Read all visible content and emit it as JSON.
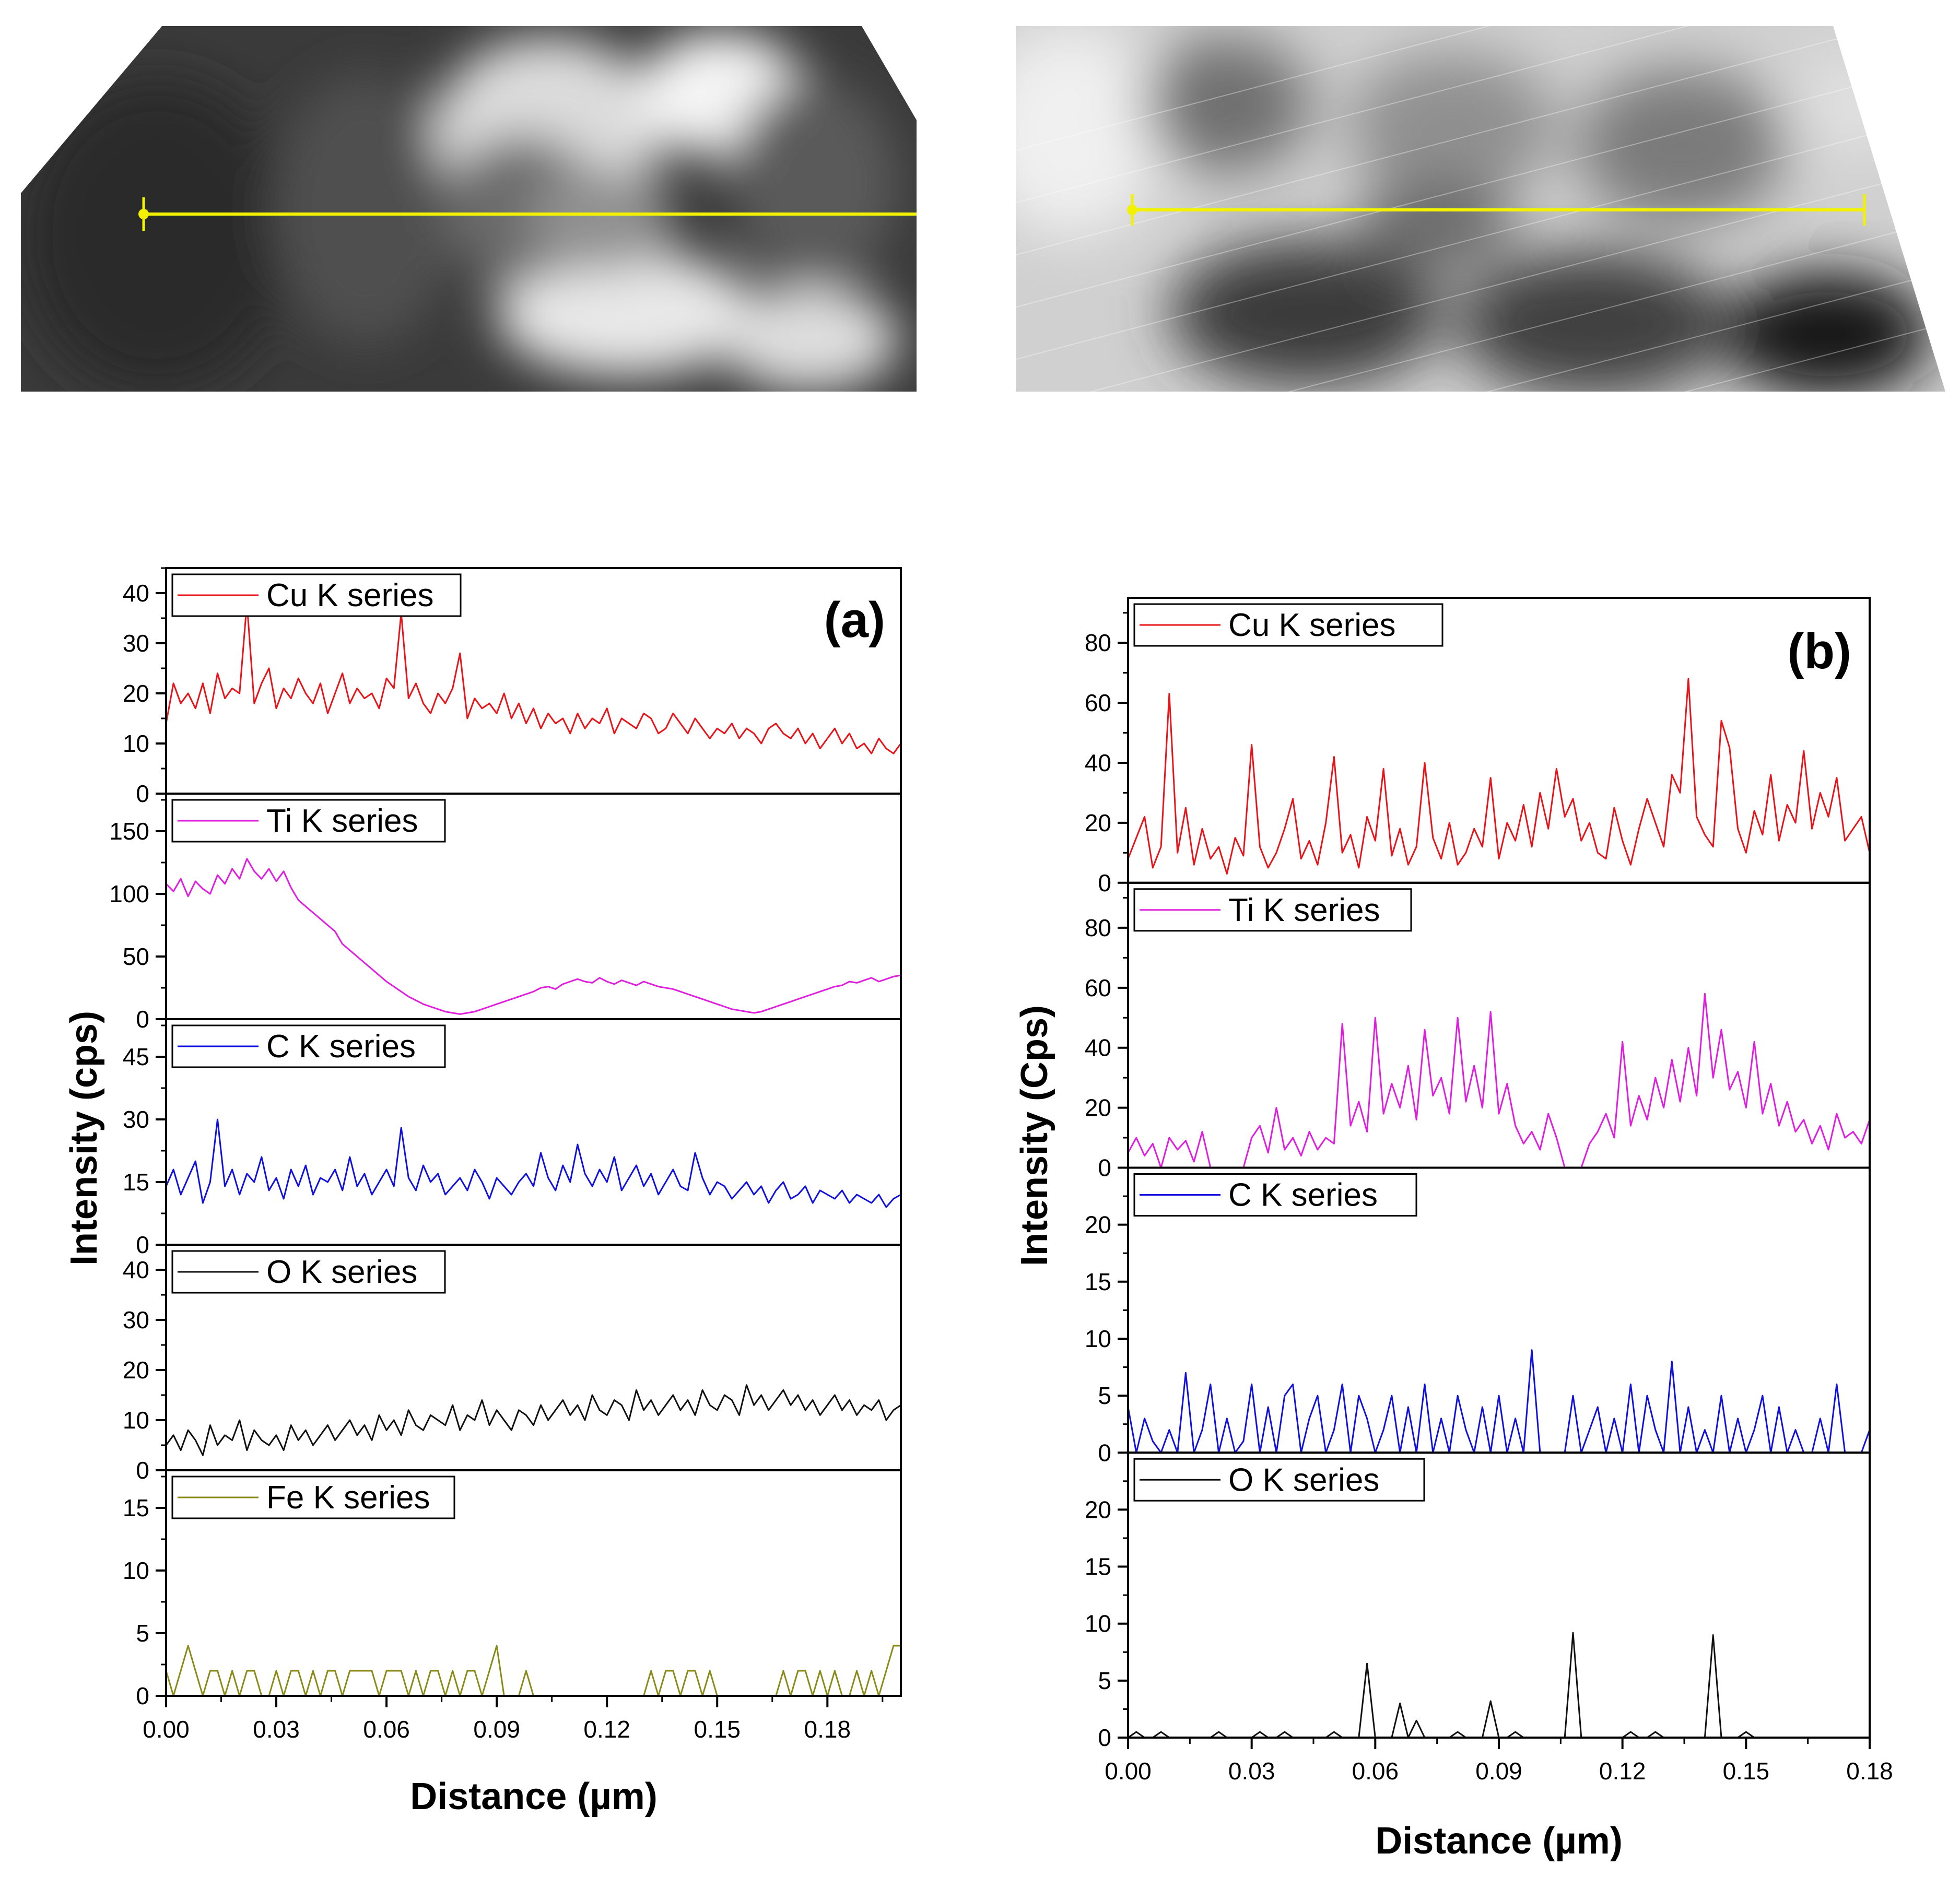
{
  "colors": {
    "Cu": "#e8141a",
    "Ti": "#e01ee0",
    "C": "#1010e0",
    "O": "#111111",
    "Fe": "#8a8a16",
    "marker_line": "#f2f200"
  },
  "chart_data": [
    {
      "type": "line",
      "panel_label": "(a)",
      "xlabel": "Distance (µm)",
      "ylabel": "Intensity (cps)",
      "xlim": [
        0,
        0.2
      ],
      "xticks": [
        "0.00",
        "0.03",
        "0.06",
        "0.09",
        "0.12",
        "0.15",
        "0.18"
      ],
      "tick_values": [
        0,
        0.03,
        0.06,
        0.09,
        0.12,
        0.15,
        0.18
      ],
      "stacked": true,
      "legend_position": "top-left of each sub-panel",
      "series": [
        {
          "name": "Cu K series",
          "color_key": "Cu",
          "ylim": [
            0,
            45
          ],
          "yticks": [
            0,
            10,
            20,
            30,
            40
          ],
          "x_step": 0.002,
          "values": [
            14,
            22,
            18,
            20,
            17,
            22,
            16,
            24,
            19,
            21,
            20,
            38,
            18,
            22,
            25,
            17,
            21,
            19,
            23,
            20,
            18,
            22,
            16,
            20,
            24,
            18,
            21,
            19,
            20,
            17,
            23,
            21,
            36,
            19,
            22,
            18,
            16,
            20,
            18,
            21,
            28,
            15,
            19,
            17,
            18,
            16,
            20,
            15,
            18,
            14,
            17,
            13,
            16,
            14,
            15,
            12,
            16,
            13,
            15,
            14,
            17,
            12,
            15,
            14,
            13,
            16,
            15,
            12,
            13,
            16,
            14,
            12,
            15,
            13,
            11,
            13,
            12,
            14,
            11,
            13,
            12,
            10,
            13,
            14,
            12,
            11,
            13,
            10,
            12,
            9,
            11,
            13,
            10,
            12,
            9,
            10,
            8,
            11,
            9,
            8,
            10
          ]
        },
        {
          "name": "Ti K series",
          "color_key": "Ti",
          "ylim": [
            0,
            180
          ],
          "yticks": [
            0,
            50,
            100,
            150
          ],
          "x_step": 0.002,
          "values": [
            108,
            102,
            112,
            98,
            110,
            104,
            100,
            115,
            108,
            120,
            112,
            128,
            118,
            112,
            120,
            110,
            118,
            105,
            95,
            90,
            85,
            80,
            75,
            70,
            60,
            55,
            50,
            45,
            40,
            35,
            30,
            26,
            22,
            18,
            15,
            12,
            10,
            8,
            6,
            5,
            4,
            5,
            6,
            8,
            10,
            12,
            14,
            16,
            18,
            20,
            22,
            25,
            26,
            24,
            28,
            30,
            32,
            30,
            29,
            33,
            30,
            28,
            31,
            29,
            27,
            30,
            28,
            26,
            25,
            24,
            22,
            20,
            18,
            16,
            14,
            12,
            10,
            8,
            7,
            6,
            5,
            6,
            8,
            10,
            12,
            14,
            16,
            18,
            20,
            22,
            24,
            26,
            27,
            30,
            29,
            31,
            33,
            30,
            32,
            34,
            35
          ]
        },
        {
          "name": "C K series",
          "color_key": "C",
          "ylim": [
            0,
            54
          ],
          "yticks": [
            0,
            15,
            30,
            45
          ],
          "x_step": 0.002,
          "values": [
            14,
            18,
            12,
            16,
            20,
            10,
            15,
            30,
            14,
            18,
            12,
            17,
            15,
            21,
            13,
            16,
            11,
            18,
            14,
            19,
            12,
            16,
            15,
            18,
            13,
            21,
            14,
            17,
            12,
            15,
            18,
            14,
            28,
            16,
            13,
            19,
            15,
            17,
            12,
            14,
            16,
            13,
            18,
            15,
            11,
            16,
            14,
            12,
            15,
            17,
            14,
            22,
            16,
            13,
            19,
            15,
            24,
            17,
            14,
            18,
            15,
            21,
            13,
            16,
            19,
            14,
            17,
            12,
            15,
            18,
            14,
            13,
            22,
            16,
            12,
            15,
            14,
            11,
            13,
            15,
            12,
            14,
            10,
            13,
            15,
            11,
            12,
            14,
            10,
            13,
            12,
            11,
            13,
            10,
            12,
            11,
            10,
            12,
            9,
            11,
            12
          ]
        },
        {
          "name": "O K series",
          "color_key": "O",
          "ylim": [
            0,
            45
          ],
          "yticks": [
            0,
            10,
            20,
            30,
            40
          ],
          "x_step": 0.002,
          "values": [
            5,
            7,
            4,
            8,
            6,
            3,
            9,
            5,
            7,
            6,
            10,
            4,
            8,
            6,
            5,
            7,
            4,
            9,
            6,
            8,
            5,
            7,
            9,
            6,
            8,
            10,
            7,
            9,
            6,
            11,
            8,
            10,
            7,
            12,
            9,
            8,
            11,
            10,
            9,
            13,
            8,
            11,
            10,
            14,
            9,
            12,
            10,
            8,
            12,
            11,
            9,
            13,
            10,
            12,
            14,
            11,
            13,
            10,
            15,
            12,
            11,
            14,
            13,
            10,
            16,
            12,
            14,
            11,
            13,
            15,
            12,
            14,
            11,
            16,
            13,
            12,
            15,
            14,
            11,
            17,
            13,
            15,
            12,
            14,
            16,
            13,
            15,
            12,
            14,
            11,
            13,
            15,
            12,
            14,
            11,
            13,
            12,
            14,
            10,
            12,
            13
          ]
        },
        {
          "name": "Fe K series",
          "color_key": "Fe",
          "ylim": [
            0,
            18
          ],
          "yticks": [
            0,
            5,
            10,
            15
          ],
          "x_step": 0.002,
          "values": [
            2,
            0,
            2,
            4,
            2,
            0,
            2,
            2,
            0,
            2,
            0,
            2,
            2,
            0,
            0,
            2,
            0,
            2,
            2,
            0,
            2,
            0,
            2,
            2,
            0,
            2,
            2,
            2,
            2,
            0,
            2,
            2,
            2,
            0,
            2,
            0,
            2,
            2,
            0,
            2,
            0,
            2,
            2,
            0,
            2,
            4,
            0,
            0,
            0,
            2,
            0,
            0,
            0,
            0,
            0,
            0,
            0,
            0,
            0,
            0,
            0,
            0,
            0,
            0,
            0,
            0,
            2,
            0,
            2,
            2,
            0,
            2,
            2,
            0,
            2,
            0,
            0,
            0,
            0,
            0,
            0,
            0,
            0,
            0,
            2,
            0,
            2,
            2,
            0,
            2,
            0,
            2,
            0,
            0,
            2,
            0,
            2,
            0,
            2,
            4,
            4
          ]
        }
      ]
    },
    {
      "type": "line",
      "panel_label": "(b)",
      "xlabel": "Distance (µm)",
      "ylabel": "Intensity (Cps)",
      "xlim": [
        0,
        0.18
      ],
      "xticks": [
        "0.00",
        "0.03",
        "0.06",
        "0.09",
        "0.12",
        "0.15",
        "0.18"
      ],
      "tick_values": [
        0,
        0.03,
        0.06,
        0.09,
        0.12,
        0.15,
        0.18
      ],
      "stacked": true,
      "legend_position": "top-left of each sub-panel",
      "series": [
        {
          "name": "Cu K series",
          "color_key": "Cu",
          "ylim": [
            0,
            95
          ],
          "yticks": [
            0,
            20,
            40,
            60,
            80
          ],
          "x_step": 0.002,
          "values": [
            8,
            15,
            22,
            5,
            12,
            63,
            10,
            25,
            6,
            18,
            8,
            12,
            3,
            15,
            9,
            46,
            12,
            5,
            10,
            18,
            28,
            8,
            14,
            6,
            20,
            42,
            10,
            16,
            5,
            22,
            14,
            38,
            9,
            18,
            6,
            12,
            40,
            15,
            8,
            20,
            6,
            10,
            18,
            12,
            35,
            8,
            20,
            14,
            26,
            12,
            30,
            18,
            38,
            22,
            28,
            14,
            20,
            10,
            8,
            25,
            14,
            6,
            18,
            28,
            20,
            12,
            36,
            30,
            68,
            22,
            16,
            12,
            54,
            45,
            18,
            10,
            24,
            16,
            36,
            14,
            26,
            20,
            44,
            18,
            30,
            22,
            35,
            14,
            18,
            22,
            10,
            28
          ]
        },
        {
          "name": "Ti K series",
          "color_key": "Ti",
          "ylim": [
            0,
            95
          ],
          "yticks": [
            0,
            20,
            40,
            60,
            80
          ],
          "x_step": 0.002,
          "values": [
            5,
            10,
            4,
            8,
            0,
            10,
            6,
            9,
            2,
            12,
            0,
            0,
            0,
            0,
            0,
            10,
            14,
            5,
            20,
            6,
            10,
            4,
            12,
            6,
            10,
            8,
            48,
            14,
            22,
            12,
            50,
            18,
            28,
            20,
            34,
            16,
            46,
            24,
            30,
            18,
            50,
            22,
            34,
            20,
            52,
            18,
            28,
            14,
            8,
            12,
            6,
            18,
            10,
            0,
            0,
            0,
            8,
            12,
            18,
            10,
            42,
            14,
            24,
            16,
            30,
            20,
            36,
            22,
            40,
            24,
            58,
            30,
            46,
            26,
            32,
            20,
            42,
            18,
            28,
            14,
            22,
            12,
            16,
            8,
            14,
            6,
            18,
            10,
            12,
            8,
            16,
            20
          ]
        },
        {
          "name": "C K series",
          "color_key": "C",
          "ylim": [
            0,
            25
          ],
          "yticks": [
            0,
            5,
            10,
            15,
            20
          ],
          "x_step": 0.002,
          "values": [
            4,
            0,
            3,
            1,
            0,
            2,
            0,
            7,
            0,
            2,
            6,
            0,
            3,
            0,
            1,
            6,
            0,
            4,
            0,
            5,
            6,
            0,
            3,
            5,
            0,
            2,
            6,
            0,
            5,
            3,
            0,
            2,
            5,
            0,
            4,
            0,
            6,
            0,
            3,
            0,
            5,
            2,
            0,
            4,
            0,
            5,
            0,
            3,
            0,
            9,
            0,
            0,
            0,
            0,
            5,
            0,
            2,
            4,
            0,
            3,
            0,
            6,
            0,
            5,
            2,
            0,
            8,
            0,
            4,
            0,
            2,
            0,
            5,
            0,
            3,
            0,
            2,
            5,
            0,
            4,
            0,
            2,
            0,
            0,
            3,
            0,
            6,
            0,
            0,
            0,
            2,
            0
          ]
        },
        {
          "name": "O K series",
          "color_key": "O",
          "ylim": [
            0,
            25
          ],
          "yticks": [
            0,
            5,
            10,
            15,
            20
          ],
          "x_step": 0.002,
          "values": [
            0,
            0.5,
            0,
            0,
            0.5,
            0,
            0,
            0,
            0,
            0,
            0,
            0.5,
            0,
            0,
            0,
            0,
            0.5,
            0,
            0,
            0.5,
            0,
            0,
            0,
            0,
            0,
            0.5,
            0,
            0,
            0,
            6.5,
            0,
            0,
            0,
            3,
            0,
            1.5,
            0,
            0,
            0,
            0,
            0.5,
            0,
            0,
            0,
            3.2,
            0,
            0,
            0.5,
            0,
            0,
            0,
            0,
            0,
            0,
            9.2,
            0,
            0,
            0,
            0,
            0,
            0,
            0.5,
            0,
            0,
            0.5,
            0,
            0,
            0,
            0,
            0,
            0,
            9,
            0,
            0,
            0,
            0.5,
            0,
            0,
            0,
            0,
            0,
            0,
            0,
            0,
            0,
            0,
            0,
            0,
            0,
            0,
            0,
            0
          ]
        }
      ]
    }
  ]
}
